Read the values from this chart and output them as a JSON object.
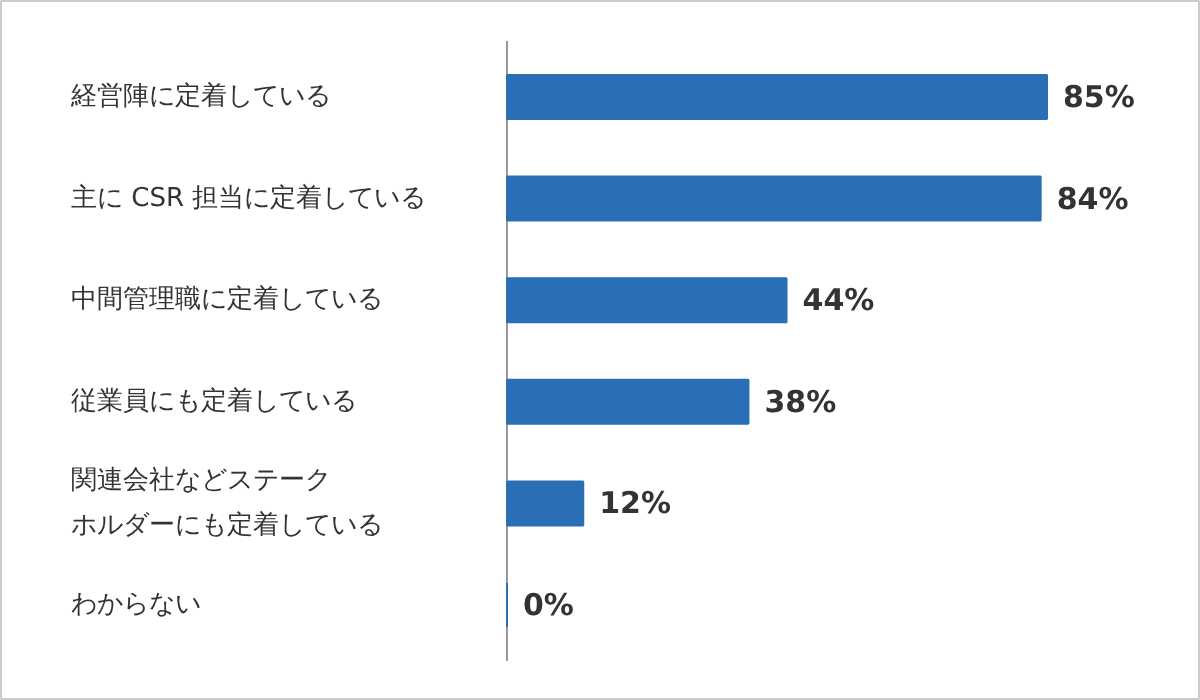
{
  "chart_data": {
    "type": "bar",
    "orientation": "horizontal",
    "categories": [
      "経営陣に定着している",
      "主に CSR 担当に定着している",
      "中間管理職に定着している",
      "従業員にも定着している",
      "関連会社などステークホルダーにも定着している",
      "わからない"
    ],
    "values": [
      85,
      84,
      44,
      38,
      12,
      0
    ],
    "value_labels": [
      "85%",
      "84%",
      "44%",
      "38%",
      "12%",
      "0%"
    ],
    "color": "#2a6fb5"
  }
}
